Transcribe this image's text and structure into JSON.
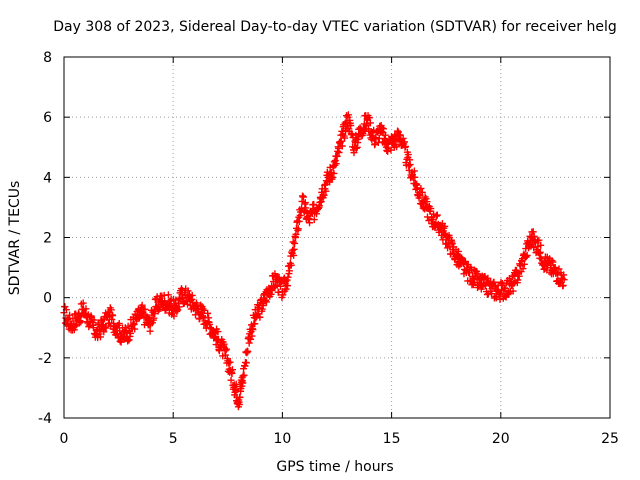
{
  "chart_data": {
    "type": "scatter",
    "title": "Day 308 of 2023, Sidereal Day-to-day VTEC variation (SDTVAR) for receiver helg",
    "xlabel": "GPS time / hours",
    "ylabel": "SDTVAR / TECUs",
    "xlim": [
      0,
      25
    ],
    "ylim": [
      -4,
      8
    ],
    "xticks": [
      0,
      5,
      10,
      15,
      20,
      25
    ],
    "yticks": [
      -4,
      -2,
      0,
      2,
      4,
      6,
      8
    ],
    "xtick_labels": [
      "0",
      "5",
      "10",
      "15",
      "20",
      "25"
    ],
    "ytick_labels": [
      "-4",
      "-2",
      "0",
      "2",
      "4",
      "6",
      "8"
    ],
    "grid": true,
    "marker": "+",
    "series": [
      {
        "name": "SDTVAR",
        "color": "#ff0000",
        "x": [
          0.0,
          0.3,
          0.6,
          0.9,
          1.2,
          1.5,
          1.8,
          2.1,
          2.4,
          2.7,
          3.0,
          3.3,
          3.6,
          3.9,
          4.2,
          4.5,
          4.8,
          5.1,
          5.4,
          5.7,
          6.0,
          6.3,
          6.6,
          6.9,
          7.2,
          7.5,
          7.8,
          8.0,
          8.2,
          8.5,
          8.8,
          9.1,
          9.4,
          9.7,
          10.0,
          10.3,
          10.6,
          10.9,
          11.2,
          11.5,
          11.8,
          12.1,
          12.4,
          12.7,
          13.0,
          13.3,
          13.6,
          13.9,
          14.2,
          14.5,
          14.8,
          15.1,
          15.4,
          15.7,
          16.0,
          16.3,
          16.6,
          16.9,
          17.2,
          17.5,
          17.8,
          18.1,
          18.4,
          18.7,
          19.0,
          19.3,
          19.6,
          19.9,
          20.2,
          20.5,
          20.8,
          21.1,
          21.4,
          21.7,
          22.0,
          22.3,
          22.6,
          22.9
        ],
        "y": [
          -0.5,
          -0.9,
          -0.7,
          -0.4,
          -0.8,
          -1.2,
          -0.9,
          -0.6,
          -1.0,
          -1.3,
          -1.1,
          -0.7,
          -0.5,
          -0.9,
          -0.3,
          -0.1,
          -0.2,
          -0.4,
          0.1,
          0.0,
          -0.3,
          -0.5,
          -0.8,
          -1.2,
          -1.6,
          -2.1,
          -2.9,
          -3.4,
          -2.6,
          -1.2,
          -0.6,
          -0.2,
          0.3,
          0.6,
          0.2,
          0.8,
          2.0,
          3.2,
          2.6,
          2.9,
          3.5,
          4.0,
          4.4,
          5.2,
          6.0,
          5.0,
          5.6,
          5.9,
          5.3,
          5.5,
          5.1,
          5.2,
          5.4,
          4.6,
          4.0,
          3.4,
          3.0,
          2.6,
          2.4,
          2.0,
          1.6,
          1.2,
          0.9,
          0.7,
          0.5,
          0.4,
          0.3,
          0.2,
          0.3,
          0.4,
          0.8,
          1.4,
          2.0,
          1.7,
          1.2,
          1.0,
          0.8,
          0.6
        ]
      }
    ]
  }
}
